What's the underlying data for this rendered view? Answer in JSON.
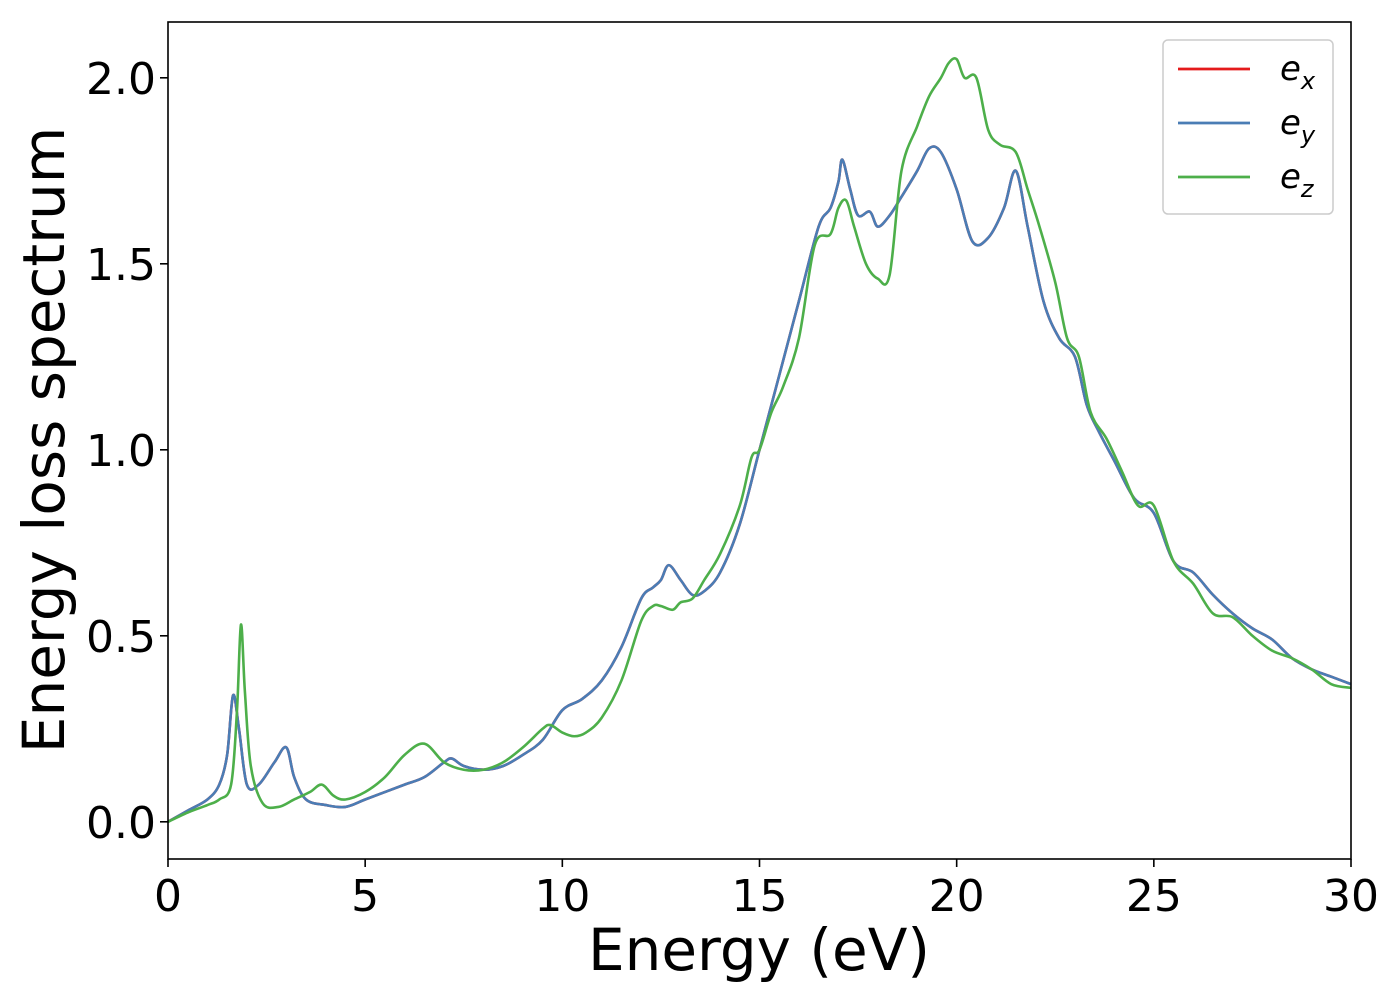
{
  "chart_data": {
    "type": "line",
    "title": "",
    "xlabel": "Energy (eV)",
    "ylabel": "Energy loss spectrum",
    "xlim": [
      0,
      30
    ],
    "ylim": [
      -0.1,
      2.15
    ],
    "xticks": [
      0,
      5,
      10,
      15,
      20,
      25,
      30
    ],
    "yticks": [
      0.0,
      0.5,
      1.0,
      1.5,
      2.0
    ],
    "xtick_labels": [
      "0",
      "5",
      "10",
      "15",
      "20",
      "25",
      "30"
    ],
    "ytick_labels": [
      "0.0",
      "0.5",
      "1.0",
      "1.5",
      "2.0"
    ],
    "grid": false,
    "legend_position": "top-right",
    "series": [
      {
        "name": "e_x",
        "label_base": "e",
        "label_sub": "x",
        "color": "#e41a1c",
        "x": [
          0,
          0.5,
          1.0,
          1.3,
          1.5,
          1.65,
          1.8,
          2.0,
          2.3,
          2.7,
          3.0,
          3.2,
          3.5,
          4.0,
          4.5,
          5.0,
          5.5,
          6.0,
          6.5,
          7.0,
          7.2,
          7.5,
          8.0,
          8.5,
          9.0,
          9.5,
          10.0,
          10.5,
          11.0,
          11.5,
          12.0,
          12.3,
          12.5,
          12.7,
          13.0,
          13.3,
          13.6,
          14.0,
          14.5,
          15.0,
          15.5,
          16.0,
          16.5,
          16.8,
          17.0,
          17.1,
          17.3,
          17.5,
          17.8,
          18.0,
          18.3,
          18.6,
          19.0,
          19.3,
          19.6,
          20.0,
          20.4,
          20.8,
          21.2,
          21.5,
          21.8,
          22.2,
          22.6,
          23.0,
          23.3,
          23.6,
          24.0,
          24.5,
          25.0,
          25.5,
          26.0,
          26.5,
          27.0,
          27.5,
          28.0,
          28.5,
          29.0,
          29.5,
          30.0
        ],
        "y": [
          0.0,
          0.03,
          0.06,
          0.1,
          0.18,
          0.34,
          0.25,
          0.1,
          0.1,
          0.16,
          0.2,
          0.12,
          0.06,
          0.045,
          0.04,
          0.06,
          0.08,
          0.1,
          0.12,
          0.16,
          0.17,
          0.15,
          0.14,
          0.15,
          0.18,
          0.22,
          0.3,
          0.33,
          0.38,
          0.47,
          0.6,
          0.63,
          0.65,
          0.69,
          0.65,
          0.61,
          0.62,
          0.67,
          0.8,
          1.0,
          1.2,
          1.4,
          1.6,
          1.65,
          1.72,
          1.78,
          1.7,
          1.63,
          1.64,
          1.6,
          1.63,
          1.68,
          1.75,
          1.81,
          1.8,
          1.7,
          1.56,
          1.57,
          1.65,
          1.75,
          1.6,
          1.4,
          1.3,
          1.25,
          1.12,
          1.05,
          0.97,
          0.87,
          0.83,
          0.7,
          0.67,
          0.61,
          0.56,
          0.52,
          0.49,
          0.44,
          0.41,
          0.39,
          0.37
        ]
      },
      {
        "name": "e_y",
        "label_base": "e",
        "label_sub": "y",
        "color": "#4a7db5",
        "x": [
          0,
          0.5,
          1.0,
          1.3,
          1.5,
          1.65,
          1.8,
          2.0,
          2.3,
          2.7,
          3.0,
          3.2,
          3.5,
          4.0,
          4.5,
          5.0,
          5.5,
          6.0,
          6.5,
          7.0,
          7.2,
          7.5,
          8.0,
          8.5,
          9.0,
          9.5,
          10.0,
          10.5,
          11.0,
          11.5,
          12.0,
          12.3,
          12.5,
          12.7,
          13.0,
          13.3,
          13.6,
          14.0,
          14.5,
          15.0,
          15.5,
          16.0,
          16.5,
          16.8,
          17.0,
          17.1,
          17.3,
          17.5,
          17.8,
          18.0,
          18.3,
          18.6,
          19.0,
          19.3,
          19.6,
          20.0,
          20.4,
          20.8,
          21.2,
          21.5,
          21.8,
          22.2,
          22.6,
          23.0,
          23.3,
          23.6,
          24.0,
          24.5,
          25.0,
          25.5,
          26.0,
          26.5,
          27.0,
          27.5,
          28.0,
          28.5,
          29.0,
          29.5,
          30.0
        ],
        "y": [
          0.0,
          0.03,
          0.06,
          0.1,
          0.18,
          0.34,
          0.25,
          0.1,
          0.1,
          0.16,
          0.2,
          0.12,
          0.06,
          0.045,
          0.04,
          0.06,
          0.08,
          0.1,
          0.12,
          0.16,
          0.17,
          0.15,
          0.14,
          0.15,
          0.18,
          0.22,
          0.3,
          0.33,
          0.38,
          0.47,
          0.6,
          0.63,
          0.65,
          0.69,
          0.65,
          0.61,
          0.62,
          0.67,
          0.8,
          1.0,
          1.2,
          1.4,
          1.6,
          1.65,
          1.72,
          1.78,
          1.7,
          1.63,
          1.64,
          1.6,
          1.63,
          1.68,
          1.75,
          1.81,
          1.8,
          1.7,
          1.56,
          1.57,
          1.65,
          1.75,
          1.6,
          1.4,
          1.3,
          1.25,
          1.12,
          1.05,
          0.97,
          0.87,
          0.83,
          0.7,
          0.67,
          0.61,
          0.56,
          0.52,
          0.49,
          0.44,
          0.41,
          0.39,
          0.37
        ]
      },
      {
        "name": "e_z",
        "label_base": "e",
        "label_sub": "z",
        "color": "#4daf4a",
        "x": [
          0,
          0.5,
          1.0,
          1.3,
          1.6,
          1.75,
          1.85,
          1.95,
          2.1,
          2.4,
          2.8,
          3.2,
          3.6,
          3.9,
          4.2,
          4.5,
          5.0,
          5.5,
          6.0,
          6.5,
          7.0,
          7.5,
          8.0,
          8.5,
          9.0,
          9.5,
          9.7,
          10.0,
          10.3,
          10.6,
          11.0,
          11.5,
          12.0,
          12.3,
          12.5,
          12.8,
          13.0,
          13.3,
          13.6,
          14.0,
          14.5,
          14.8,
          15.0,
          15.3,
          15.6,
          16.0,
          16.4,
          16.8,
          17.0,
          17.2,
          17.4,
          17.7,
          18.0,
          18.3,
          18.6,
          19.0,
          19.3,
          19.6,
          19.8,
          20.0,
          20.2,
          20.5,
          20.8,
          21.1,
          21.5,
          21.8,
          22.1,
          22.5,
          22.8,
          23.1,
          23.4,
          23.8,
          24.2,
          24.6,
          25.0,
          25.5,
          26.0,
          26.5,
          27.0,
          27.5,
          28.0,
          28.5,
          29.0,
          29.5,
          30.0
        ],
        "y": [
          0.0,
          0.025,
          0.045,
          0.06,
          0.1,
          0.3,
          0.53,
          0.35,
          0.15,
          0.05,
          0.04,
          0.06,
          0.08,
          0.1,
          0.07,
          0.06,
          0.08,
          0.12,
          0.18,
          0.21,
          0.16,
          0.14,
          0.14,
          0.16,
          0.2,
          0.25,
          0.26,
          0.24,
          0.23,
          0.24,
          0.28,
          0.38,
          0.54,
          0.58,
          0.58,
          0.57,
          0.59,
          0.6,
          0.65,
          0.72,
          0.85,
          0.98,
          1.0,
          1.1,
          1.17,
          1.3,
          1.55,
          1.58,
          1.65,
          1.67,
          1.6,
          1.5,
          1.46,
          1.47,
          1.75,
          1.87,
          1.95,
          2.0,
          2.04,
          2.05,
          2.0,
          2.0,
          1.86,
          1.82,
          1.8,
          1.7,
          1.6,
          1.45,
          1.3,
          1.25,
          1.1,
          1.03,
          0.94,
          0.85,
          0.85,
          0.7,
          0.64,
          0.56,
          0.55,
          0.5,
          0.46,
          0.44,
          0.41,
          0.37,
          0.36
        ]
      }
    ]
  }
}
